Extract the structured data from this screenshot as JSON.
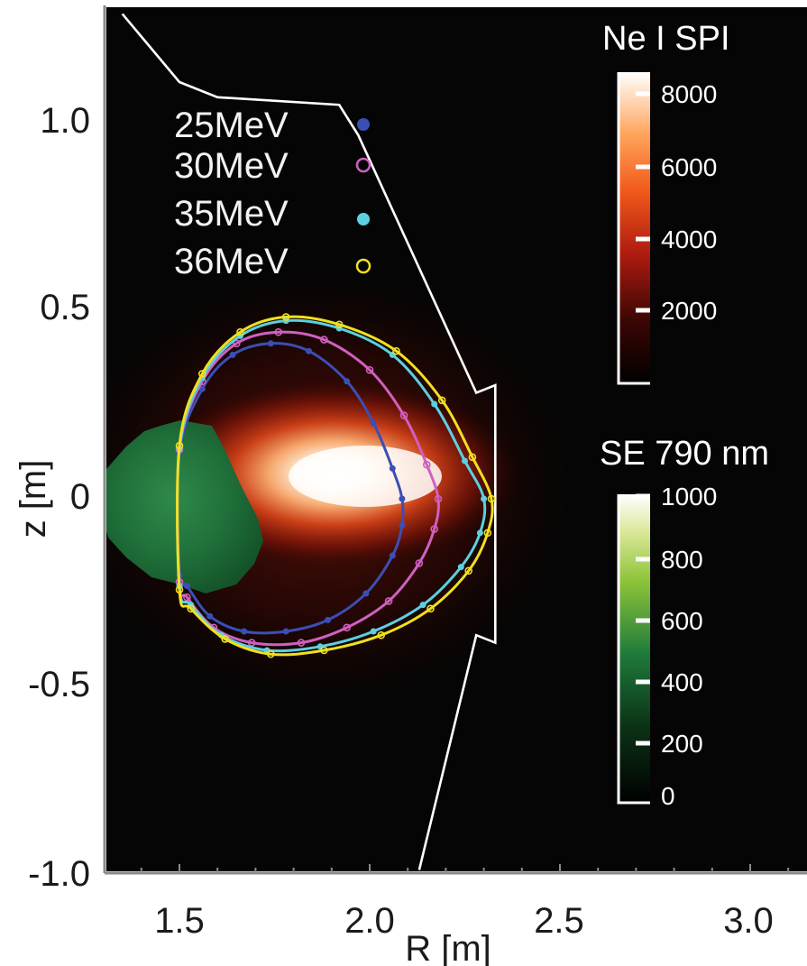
{
  "chart_data": {
    "type": "heatmap",
    "xlabel": "R [m]",
    "ylabel": "z [m]",
    "xlim": [
      1.3,
      3.1
    ],
    "ylim": [
      -1.0,
      1.28
    ],
    "x_ticks": [
      "1.5",
      "2.0",
      "2.5",
      "3.0"
    ],
    "y_ticks": [
      "1.0",
      "0.5",
      "0",
      "-0.5",
      "-1.0"
    ],
    "background_color": "#050505",
    "legend": {
      "placement": "top-left",
      "entries": [
        {
          "label": "25MeV",
          "marker": "filled-circle",
          "color": "#3a4fb5"
        },
        {
          "label": "30MeV",
          "marker": "open-circle",
          "color": "#d060c0"
        },
        {
          "label": "35MeV",
          "marker": "filled-circle",
          "color": "#5cd0e0"
        },
        {
          "label": "36MeV",
          "marker": "open-circle",
          "color": "#f0e020"
        }
      ]
    },
    "colorbars": [
      {
        "title": "Ne I SPI",
        "ticks": [
          "8000",
          "6000",
          "4000",
          "2000"
        ],
        "range": [
          0,
          8800
        ],
        "colormap": "black-red-orange-white"
      },
      {
        "title": "SE 790 nm",
        "ticks": [
          "1000",
          "800",
          "600",
          "400",
          "200",
          "0"
        ],
        "range": [
          0,
          1000
        ],
        "colormap": "black-green-white"
      }
    ],
    "series": [
      {
        "name": "25MeV",
        "color": "#3a4fb5",
        "marker": "filled-circle",
        "x": [
          1.5,
          1.56,
          1.64,
          1.74,
          1.84,
          1.94,
          2.01,
          2.06,
          2.085,
          2.085,
          2.06,
          1.99,
          1.89,
          1.78,
          1.67,
          1.58,
          1.52,
          1.5
        ],
        "y": [
          0.12,
          0.29,
          0.38,
          0.41,
          0.39,
          0.31,
          0.2,
          0.08,
          0.0,
          -0.07,
          -0.15,
          -0.25,
          -0.32,
          -0.35,
          -0.35,
          -0.31,
          -0.23,
          -0.2
        ]
      },
      {
        "name": "30MeV",
        "color": "#d060c0",
        "marker": "open-circle",
        "x": [
          1.5,
          1.56,
          1.65,
          1.76,
          1.88,
          2.0,
          2.09,
          2.15,
          2.18,
          2.17,
          2.13,
          2.05,
          1.94,
          1.82,
          1.69,
          1.59,
          1.52,
          1.5
        ],
        "y": [
          0.13,
          0.31,
          0.41,
          0.44,
          0.42,
          0.34,
          0.22,
          0.09,
          0.0,
          -0.08,
          -0.17,
          -0.27,
          -0.34,
          -0.38,
          -0.38,
          -0.34,
          -0.26,
          -0.22
        ]
      },
      {
        "name": "35MeV",
        "color": "#5cd0e0",
        "marker": "filled-circle",
        "x": [
          1.5,
          1.56,
          1.66,
          1.78,
          1.92,
          2.06,
          2.17,
          2.25,
          2.3,
          2.29,
          2.24,
          2.14,
          2.01,
          1.87,
          1.73,
          1.61,
          1.53,
          1.5
        ],
        "y": [
          0.13,
          0.32,
          0.43,
          0.47,
          0.45,
          0.38,
          0.25,
          0.1,
          0.0,
          -0.09,
          -0.18,
          -0.28,
          -0.35,
          -0.39,
          -0.4,
          -0.36,
          -0.28,
          -0.23
        ]
      },
      {
        "name": "36MeV",
        "color": "#f0e020",
        "marker": "open-circle",
        "x": [
          1.5,
          1.56,
          1.66,
          1.78,
          1.92,
          2.07,
          2.19,
          2.27,
          2.32,
          2.31,
          2.26,
          2.16,
          2.03,
          1.88,
          1.74,
          1.62,
          1.53,
          1.5
        ],
        "y": [
          0.14,
          0.33,
          0.44,
          0.48,
          0.46,
          0.39,
          0.26,
          0.11,
          0.0,
          -0.09,
          -0.19,
          -0.29,
          -0.36,
          -0.4,
          -0.41,
          -0.37,
          -0.29,
          -0.24
        ]
      }
    ],
    "vessel_wall": {
      "x": [
        1.35,
        1.5,
        1.6,
        1.92,
        1.97,
        2.28,
        2.33,
        2.33,
        2.28,
        2.13
      ],
      "y": [
        1.28,
        1.1,
        1.06,
        1.04,
        0.96,
        0.28,
        0.3,
        -0.38,
        -0.36,
        -0.98
      ]
    }
  }
}
